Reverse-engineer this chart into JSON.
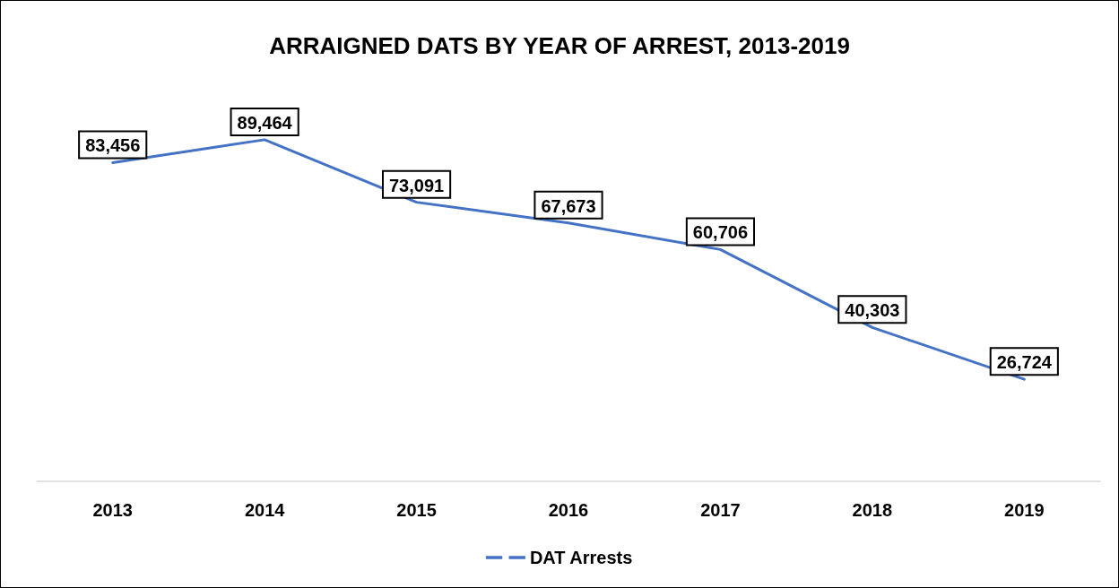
{
  "chart_data": {
    "type": "line",
    "title": "ARRAIGNED DATS BY YEAR OF ARREST, 2013-2019",
    "categories": [
      "2013",
      "2014",
      "2015",
      "2016",
      "2017",
      "2018",
      "2019"
    ],
    "series": [
      {
        "name": "DAT Arrests",
        "color": "#4472c4",
        "values": [
          83456,
          89464,
          73091,
          67673,
          60706,
          40303,
          26724
        ],
        "value_labels": [
          "83,456",
          "89,464",
          "73,091",
          "67,673",
          "60,706",
          "40,303",
          "26,724"
        ]
      }
    ],
    "legend": "bottom",
    "grid": false
  }
}
